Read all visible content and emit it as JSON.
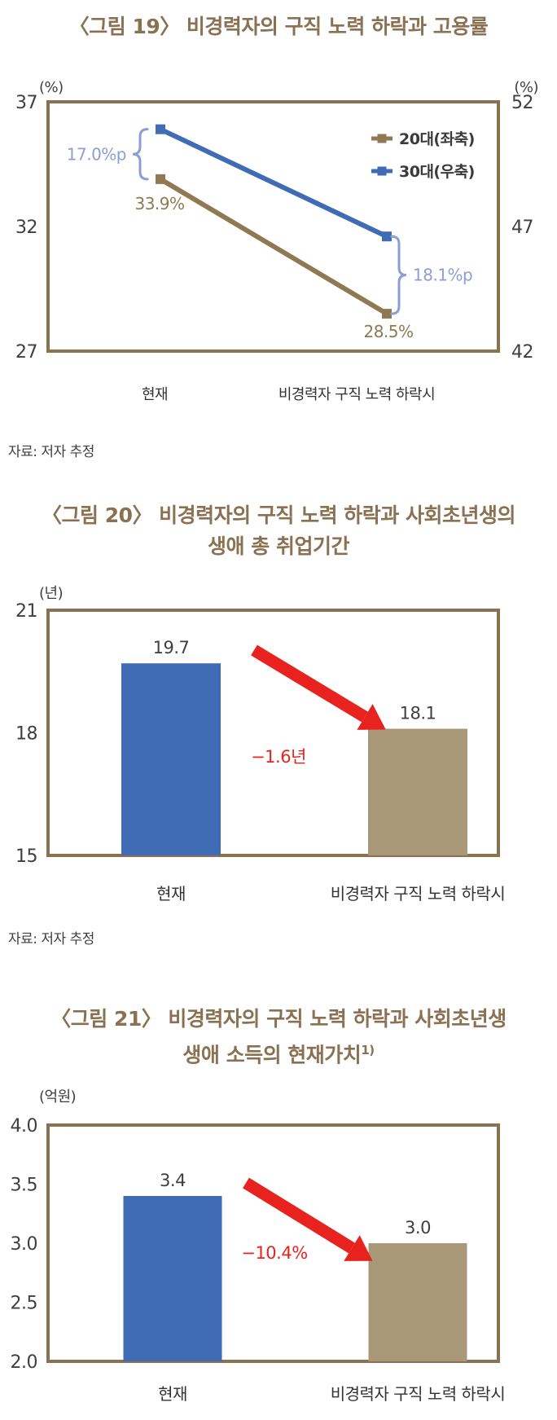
{
  "colors": {
    "title_brown": "#8a7152",
    "frame_brown": "#8a7152",
    "series_brown": "#8f7952",
    "series_blue": "#3f6cb4",
    "bar_blue": "#3f6cb4",
    "bar_tan": "#a99878",
    "brace_periwinkle": "#8c9ed6",
    "arrow_red": "#e8231f",
    "tick_text": "#3f3f3f",
    "xlabel_text": "#333333",
    "value_text": "#3f3f3f",
    "legend_text": "#3a3a3a"
  },
  "chart_data": [
    {
      "id": "fig19",
      "type": "line",
      "title": "〈그림 19〉 비경력자의 구직 노력 하락과 고용률",
      "categories": [
        "현재",
        "비경력자 구직 노력 하락시"
      ],
      "series": [
        {
          "name": "20대(좌축)",
          "axis": "left",
          "values": [
            33.9,
            28.5
          ],
          "point_labels": [
            "33.9%",
            "28.5%"
          ],
          "color_key": "series_brown"
        },
        {
          "name": "30대(우축)",
          "axis": "right",
          "values": [
            50.9,
            46.6
          ],
          "point_labels": [],
          "color_key": "series_blue"
        }
      ],
      "axis_left": {
        "unit": "(%)",
        "min": 27,
        "max": 37,
        "ticks": [
          {
            "label": "37",
            "value": 37
          },
          {
            "label": "32",
            "value": 32
          },
          {
            "label": "27",
            "value": 27
          }
        ]
      },
      "axis_right": {
        "unit": "(%)",
        "min": 42,
        "max": 52,
        "ticks": [
          {
            "label": "52",
            "value": 52
          },
          {
            "label": "47",
            "value": 47
          },
          {
            "label": "42",
            "value": 42
          }
        ]
      },
      "annotations": [
        {
          "type": "brace",
          "side": "left",
          "category": 0,
          "label": "17.0%p"
        },
        {
          "type": "brace",
          "side": "right",
          "category": 1,
          "label": "18.1%p"
        }
      ],
      "legend": [
        {
          "label": "20대(좌축)",
          "color_key": "series_brown"
        },
        {
          "label": "30대(우축)",
          "color_key": "series_blue"
        }
      ],
      "source": "자료: 저자 추정"
    },
    {
      "id": "fig20",
      "type": "bar",
      "title_lines": [
        "〈그림 20〉 비경력자의 구직 노력 하락과 사회초년생의",
        "생애 총 취업기간"
      ],
      "unit": "(년)",
      "categories": [
        "현재",
        "비경력자 구직 노력 하락시"
      ],
      "values": [
        19.7,
        18.1
      ],
      "value_labels": [
        "19.7",
        "18.1"
      ],
      "bar_color_keys": [
        "bar_blue",
        "bar_tan"
      ],
      "axis": {
        "min": 15,
        "max": 21,
        "ticks": [
          {
            "label": "21",
            "value": 21
          },
          {
            "label": "18",
            "value": 18
          },
          {
            "label": "15",
            "value": 15
          }
        ]
      },
      "arrow": {
        "label": "−1.6년"
      },
      "source": "자료: 저자 추정"
    },
    {
      "id": "fig21",
      "type": "bar",
      "title_lines": [
        "〈그림 21〉 비경력자의 구직 노력 하락과 사회초년생",
        "생애 소득의 현재가치"
      ],
      "title_superscript": "1)",
      "unit": "(억원)",
      "categories": [
        "현재",
        "비경력자 구직 노력 하락시"
      ],
      "values": [
        3.4,
        3.0
      ],
      "value_labels": [
        "3.4",
        "3.0"
      ],
      "bar_color_keys": [
        "bar_blue",
        "bar_tan"
      ],
      "axis": {
        "min": 2.0,
        "max": 4.0,
        "ticks": [
          {
            "label": "4.0",
            "value": 4.0
          },
          {
            "label": "3.5",
            "value": 3.5
          },
          {
            "label": "3.0",
            "value": 3.0
          },
          {
            "label": "2.5",
            "value": 2.5
          },
          {
            "label": "2.0",
            "value": 2.0
          }
        ]
      },
      "arrow": {
        "label": "−10.4%"
      },
      "source": null
    }
  ]
}
